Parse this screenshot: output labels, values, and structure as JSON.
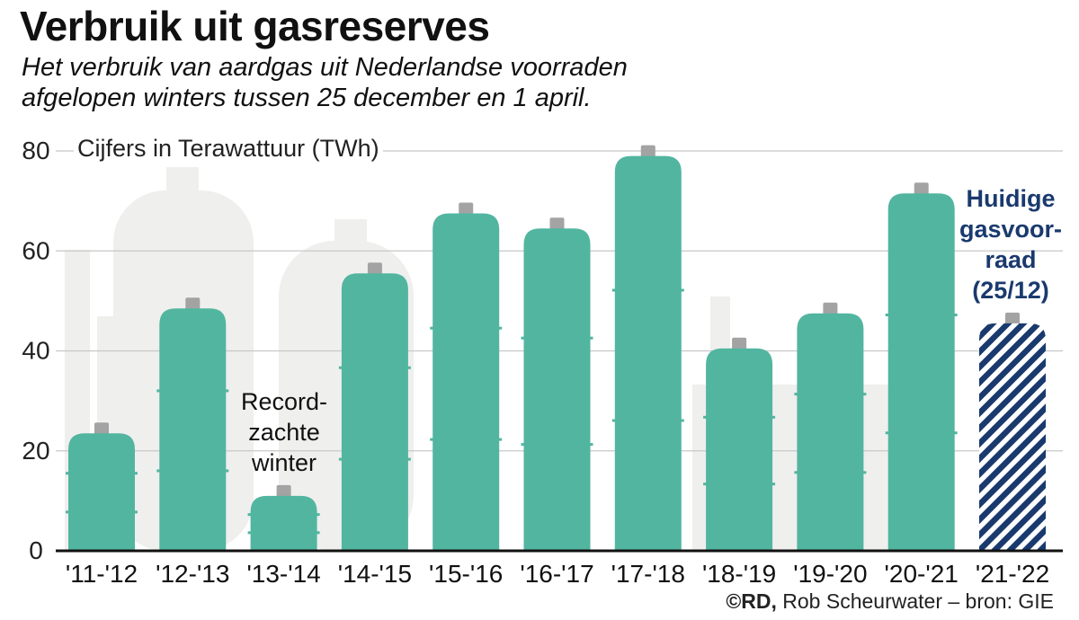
{
  "header": {
    "title": "Verbruik uit gasreserves",
    "subtitle_line1": "Het verbruik van aardgas uit Nederlandse voorraden",
    "subtitle_line2": "afgelopen winters tussen 25 december en 1 april."
  },
  "unit_label": "Cijfers in Terawattuur (TWh)",
  "annotations": {
    "record": [
      "Record-",
      "zachte",
      "winter"
    ],
    "current": [
      "Huidige",
      "gasvoor-",
      "raad",
      "(25/12)"
    ]
  },
  "credit": {
    "brand": "©RD,",
    "text": " Rob Scheurwater – bron: GIE"
  },
  "colors": {
    "bar": "#52b5a0",
    "current": "#1a3a6e",
    "cap": "#a3a3a3",
    "background_art": "#ededeb",
    "baseline": "#111111"
  },
  "chart_data": {
    "type": "bar",
    "categories": [
      "'11-'12",
      "'12-'13",
      "'13-'14",
      "'14-'15",
      "'15-'16",
      "'16-'17",
      "'17-'18",
      "'18-'19",
      "'19-'20",
      "'20-'21",
      "'21-'22"
    ],
    "values": [
      23.5,
      48.5,
      11,
      55.5,
      67.5,
      64.5,
      79,
      40.5,
      47.5,
      71.5,
      45.5
    ],
    "highlight_index": 10,
    "title": "Verbruik uit gasreserves",
    "ylim": [
      0,
      80
    ],
    "yticks": [
      0,
      20,
      40,
      60,
      80
    ],
    "grid": true
  }
}
